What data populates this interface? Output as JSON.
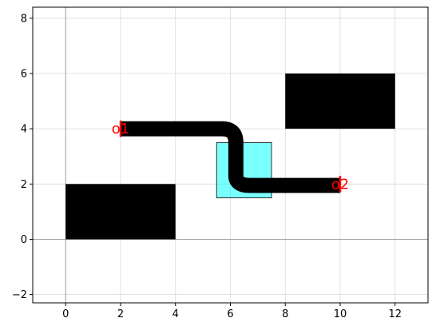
{
  "chart_data": {
    "type": "diagram",
    "xlim": [
      -1.2,
      13.2
    ],
    "ylim": [
      -2.3,
      8.4
    ],
    "grid": true,
    "x_ticks": [
      0,
      2,
      4,
      6,
      8,
      10,
      12
    ],
    "y_ticks": [
      -2,
      0,
      2,
      4,
      6,
      8
    ],
    "rectangles": [
      {
        "x0": 0,
        "y0": 0,
        "x1": 4,
        "y1": 2,
        "fill": "#000000",
        "opacity": 1
      },
      {
        "x0": 8,
        "y0": 4,
        "x1": 12,
        "y1": 6,
        "fill": "#000000",
        "opacity": 1
      },
      {
        "x0": 5.5,
        "y0": 1.5,
        "x1": 7.5,
        "y1": 3.5,
        "fill": "#00ffff",
        "opacity": 0.52
      }
    ],
    "path": {
      "points": [
        [
          2,
          4
        ],
        [
          5.7,
          4
        ],
        [
          6.2,
          3.5
        ],
        [
          6.2,
          2.3
        ],
        [
          6.7,
          1.95
        ],
        [
          10,
          1.95
        ]
      ],
      "color": "#000000"
    },
    "ports": [
      {
        "name": "o1",
        "x": 2,
        "y": 4,
        "color": "#ff0000"
      },
      {
        "name": "o2",
        "x": 10,
        "y": 2,
        "color": "#ff0000"
      }
    ],
    "colors": {
      "axes_zero": "#a0a0a0",
      "grid": "#d8d8d8",
      "port": "#ff0000"
    }
  }
}
